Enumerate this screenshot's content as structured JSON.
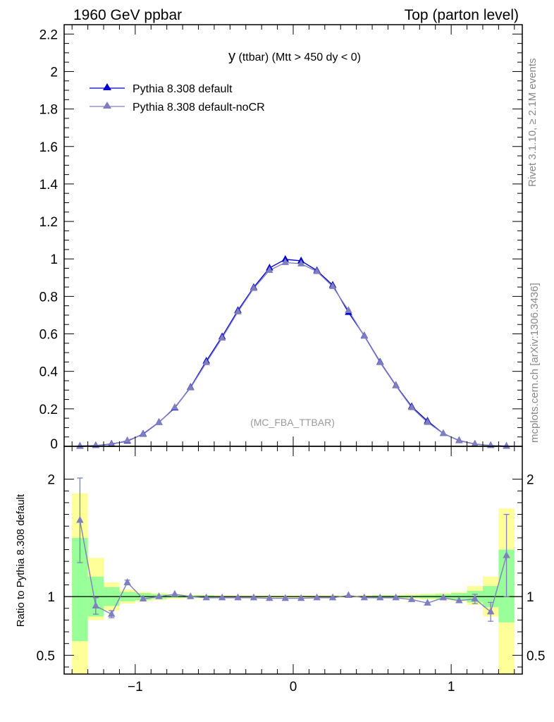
{
  "header": {
    "left": "1960 GeV ppbar",
    "right": "Top (parton level)"
  },
  "side_text": {
    "rivet": "Rivet 3.1.10, ≥ 2.1M events",
    "mcplots": "mcplots.cern.ch [arXiv:1306.3436]"
  },
  "chart_data": [
    {
      "type": "line",
      "title": "y (ttbar) (Mtt > 450 dy < 0)",
      "title_main": "y",
      "title_rest": "(ttbar) (Mtt > 450 dy < 0)",
      "watermark": "(MC_FBA_TTBAR)",
      "xlim": [
        -1.45,
        1.45
      ],
      "ylim": [
        0,
        2.25
      ],
      "y_ticks": [
        0,
        0.2,
        0.4,
        0.6,
        0.8,
        1,
        1.2,
        1.4,
        1.6,
        1.8,
        2,
        2.2
      ],
      "y_tick_labels": [
        "0",
        "0.2",
        "0.4",
        "0.6",
        "0.8",
        "1",
        "1.2",
        "1.4",
        "1.6",
        "1.8",
        "2",
        "2.2"
      ],
      "x": [
        -1.35,
        -1.25,
        -1.15,
        -1.05,
        -0.95,
        -0.85,
        -0.75,
        -0.65,
        -0.55,
        -0.45,
        -0.35,
        -0.25,
        -0.15,
        -0.05,
        0.05,
        0.15,
        0.25,
        0.35,
        0.45,
        0.55,
        0.65,
        0.75,
        0.85,
        0.95,
        1.05,
        1.15,
        1.25,
        1.35
      ],
      "legend_position": "top-left",
      "series": [
        {
          "name": "Pythia 8.308 default",
          "color": "#0000cc",
          "values": [
            0.001,
            0.004,
            0.012,
            0.028,
            0.066,
            0.128,
            0.205,
            0.315,
            0.455,
            0.585,
            0.725,
            0.848,
            0.952,
            0.998,
            0.99,
            0.938,
            0.86,
            0.715,
            0.59,
            0.45,
            0.325,
            0.212,
            0.135,
            0.068,
            0.031,
            0.012,
            0.004,
            0.001
          ]
        },
        {
          "name": "Pythia 8.308 default-noCR",
          "color": "#7f7fbf",
          "values": [
            0.002,
            0.004,
            0.01,
            0.031,
            0.064,
            0.127,
            0.208,
            0.312,
            0.447,
            0.578,
            0.718,
            0.843,
            0.939,
            0.981,
            0.974,
            0.933,
            0.853,
            0.725,
            0.588,
            0.447,
            0.323,
            0.207,
            0.128,
            0.068,
            0.03,
            0.012,
            0.004,
            0.001
          ]
        }
      ]
    },
    {
      "type": "line",
      "ylabel": "Ratio to Pythia 8.308 default",
      "xlim": [
        -1.45,
        1.45
      ],
      "ylim": [
        0.34,
        2.28
      ],
      "x_ticks": [
        -1,
        0,
        1
      ],
      "x_tick_labels": [
        "−1",
        "0",
        "1"
      ],
      "y_ticks": [
        0.5,
        1,
        2
      ],
      "y_tick_labels": [
        "0.5",
        "1",
        "2"
      ],
      "x": [
        -1.35,
        -1.25,
        -1.15,
        -1.05,
        -0.95,
        -0.85,
        -0.75,
        -0.65,
        -0.55,
        -0.45,
        -0.35,
        -0.25,
        -0.15,
        -0.05,
        0.05,
        0.15,
        0.25,
        0.35,
        0.45,
        0.55,
        0.65,
        0.75,
        0.85,
        0.95,
        1.05,
        1.15,
        1.25,
        1.35
      ],
      "band_colors": {
        "inner": "#99ff99",
        "outer": "#ffff99"
      },
      "reference_band_green": [
        [
          0.62,
          1.5
        ],
        [
          0.83,
          1.17
        ],
        [
          0.92,
          1.08
        ],
        [
          0.96,
          1.04
        ],
        [
          0.97,
          1.03
        ],
        [
          0.98,
          1.02
        ],
        [
          0.99,
          1.01
        ],
        [
          0.99,
          1.01
        ],
        [
          0.99,
          1.01
        ],
        [
          0.995,
          1.005
        ],
        [
          0.995,
          1.005
        ],
        [
          0.995,
          1.005
        ],
        [
          0.995,
          1.005
        ],
        [
          0.995,
          1.005
        ],
        [
          0.995,
          1.005
        ],
        [
          0.995,
          1.005
        ],
        [
          0.995,
          1.005
        ],
        [
          0.995,
          1.005
        ],
        [
          0.995,
          1.005
        ],
        [
          0.99,
          1.01
        ],
        [
          0.99,
          1.01
        ],
        [
          0.99,
          1.01
        ],
        [
          0.985,
          1.015
        ],
        [
          0.98,
          1.02
        ],
        [
          0.97,
          1.03
        ],
        [
          0.95,
          1.05
        ],
        [
          0.91,
          1.09
        ],
        [
          0.78,
          1.4
        ]
      ],
      "reference_band_yellow": [
        [
          0.34,
          1.88
        ],
        [
          0.8,
          1.33
        ],
        [
          0.88,
          1.12
        ],
        [
          0.94,
          1.06
        ],
        [
          0.96,
          1.04
        ],
        [
          0.97,
          1.03
        ],
        [
          0.98,
          1.02
        ],
        [
          0.985,
          1.015
        ],
        [
          0.985,
          1.015
        ],
        [
          0.99,
          1.01
        ],
        [
          0.99,
          1.01
        ],
        [
          0.99,
          1.01
        ],
        [
          0.99,
          1.01
        ],
        [
          0.99,
          1.01
        ],
        [
          0.99,
          1.01
        ],
        [
          0.99,
          1.01
        ],
        [
          0.99,
          1.01
        ],
        [
          0.99,
          1.01
        ],
        [
          0.99,
          1.01
        ],
        [
          0.985,
          1.015
        ],
        [
          0.985,
          1.015
        ],
        [
          0.98,
          1.02
        ],
        [
          0.975,
          1.025
        ],
        [
          0.97,
          1.03
        ],
        [
          0.96,
          1.04
        ],
        [
          0.93,
          1.09
        ],
        [
          0.83,
          1.17
        ],
        [
          0.34,
          1.75
        ]
      ],
      "series": [
        {
          "name": "Pythia 8.308 default-noCR",
          "color": "#7f7fbf",
          "values": [
            1.65,
            0.92,
            0.85,
            1.12,
            0.98,
            1.0,
            1.02,
            1.0,
            0.99,
            0.99,
            0.99,
            0.99,
            0.985,
            0.985,
            0.985,
            0.99,
            0.99,
            1.01,
            0.99,
            0.99,
            0.99,
            0.975,
            0.945,
            0.99,
            0.965,
            0.98,
            0.87,
            1.35
          ],
          "err": [
            0.36,
            0.07,
            0.03,
            0.02,
            0.01,
            0.005,
            0.005,
            0.004,
            0.004,
            0.003,
            0.003,
            0.003,
            0.003,
            0.003,
            0.003,
            0.003,
            0.003,
            0.003,
            0.004,
            0.004,
            0.004,
            0.005,
            0.006,
            0.01,
            0.015,
            0.04,
            0.08,
            0.35
          ]
        }
      ]
    }
  ]
}
